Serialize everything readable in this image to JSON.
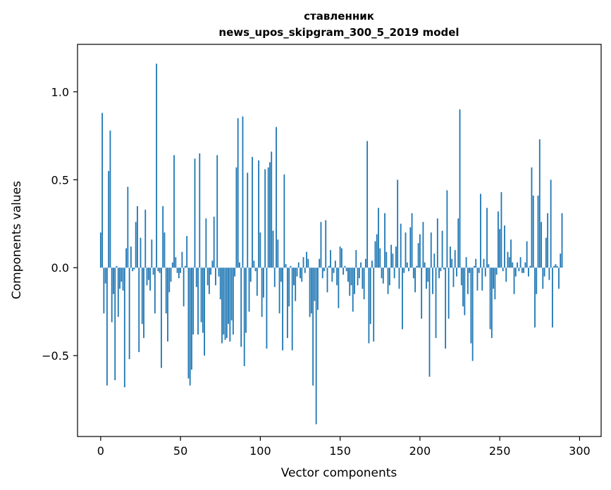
{
  "chart_data": {
    "type": "bar",
    "title": "ставленник",
    "subtitle": "news_upos_skipgram_300_5_2019 model",
    "xlabel": "Vector components",
    "ylabel": "Components values",
    "xlim": [
      -14.5,
      313.5
    ],
    "ylim": [
      -0.96,
      1.27
    ],
    "x_ticks": [
      0,
      50,
      100,
      150,
      200,
      250,
      300
    ],
    "x_tick_labels": [
      "0",
      "50",
      "100",
      "150",
      "200",
      "250",
      "300"
    ],
    "y_ticks": [
      -0.5,
      0.0,
      0.5,
      1.0
    ],
    "y_tick_labels": [
      "−0.5",
      "0.0",
      "0.5",
      "1.0"
    ],
    "bar_color": "#1f77b4",
    "grid": false,
    "values": [
      0.2,
      0.88,
      -0.26,
      -0.09,
      -0.67,
      0.55,
      0.78,
      -0.31,
      -0.15,
      -0.64,
      0.01,
      -0.28,
      -0.12,
      -0.08,
      -0.13,
      -0.68,
      0.11,
      0.46,
      -0.52,
      0.12,
      -0.02,
      -0.01,
      0.26,
      0.35,
      -0.48,
      0.17,
      -0.32,
      -0.4,
      0.33,
      -0.1,
      -0.07,
      -0.13,
      0.16,
      -0.04,
      -0.26,
      1.16,
      -0.02,
      -0.03,
      -0.57,
      0.35,
      0.2,
      -0.26,
      -0.42,
      -0.14,
      -0.08,
      0.03,
      0.64,
      0.06,
      -0.03,
      -0.06,
      -0.03,
      0.09,
      -0.22,
      0.01,
      0.18,
      -0.63,
      -0.67,
      -0.58,
      -0.38,
      0.62,
      -0.11,
      -0.38,
      0.65,
      -0.31,
      -0.37,
      -0.5,
      0.28,
      -0.1,
      -0.15,
      -0.04,
      0.04,
      0.29,
      -0.1,
      0.64,
      -0.05,
      -0.18,
      -0.43,
      -0.38,
      -0.41,
      -0.4,
      -0.32,
      -0.42,
      -0.3,
      -0.38,
      -0.05,
      0.57,
      0.85,
      0.03,
      -0.45,
      0.86,
      -0.56,
      -0.37,
      0.54,
      -0.25,
      -0.08,
      0.63,
      0.04,
      -0.02,
      -0.16,
      0.61,
      0.2,
      -0.28,
      -0.17,
      0.56,
      -0.46,
      0.57,
      0.6,
      0.66,
      0.21,
      -0.11,
      0.8,
      0.16,
      -0.26,
      -0.08,
      -0.47,
      0.53,
      0.02,
      -0.4,
      -0.22,
      0.01,
      -0.47,
      -0.1,
      -0.19,
      -0.05,
      0.03,
      -0.06,
      -0.08,
      0.06,
      -0.03,
      0.09,
      0.05,
      -0.28,
      -0.26,
      -0.67,
      -0.19,
      -0.89,
      -0.24,
      0.05,
      0.26,
      -0.06,
      -0.02,
      0.27,
      -0.14,
      0.01,
      0.1,
      -0.08,
      -0.03,
      0.04,
      -0.1,
      -0.23,
      0.12,
      0.11,
      -0.04,
      0.01,
      -0.02,
      -0.08,
      -0.16,
      -0.1,
      -0.25,
      -0.15,
      0.1,
      -0.1,
      -0.06,
      0.03,
      -0.12,
      -0.18,
      0.05,
      0.72,
      -0.43,
      -0.32,
      0.04,
      -0.42,
      0.15,
      0.19,
      0.34,
      0.11,
      -0.06,
      -0.09,
      0.31,
      0.09,
      -0.15,
      -0.1,
      0.13,
      0.08,
      -0.06,
      0.12,
      0.5,
      -0.12,
      0.25,
      -0.35,
      -0.03,
      0.2,
      0.03,
      -0.02,
      0.23,
      0.31,
      -0.06,
      -0.14,
      0.01,
      0.14,
      0.19,
      -0.29,
      0.26,
      0.03,
      -0.12,
      -0.08,
      -0.62,
      0.2,
      -0.15,
      0.08,
      -0.4,
      0.28,
      -0.06,
      -0.02,
      0.21,
      -0.01,
      -0.46,
      0.44,
      -0.29,
      0.12,
      0.05,
      -0.11,
      0.1,
      -0.05,
      0.28,
      0.9,
      -0.1,
      -0.22,
      -0.27,
      0.06,
      -0.15,
      -0.03,
      -0.43,
      -0.53,
      0.01,
      0.05,
      -0.13,
      -0.03,
      0.42,
      -0.13,
      0.05,
      -0.05,
      0.34,
      0.02,
      -0.35,
      -0.4,
      -0.12,
      -0.18,
      -0.04,
      0.32,
      0.22,
      0.43,
      -0.02,
      0.24,
      -0.08,
      0.09,
      0.06,
      0.16,
      0.03,
      -0.15,
      -0.05,
      0.03,
      -0.02,
      0.06,
      -0.03,
      -0.03,
      0.03,
      0.15,
      -0.05,
      0.01,
      0.57,
      0.41,
      -0.34,
      -0.15,
      0.41,
      0.73,
      0.26,
      -0.12,
      -0.05,
      0.17,
      0.31,
      -0.07,
      0.5,
      -0.34,
      0.01,
      0.02,
      0.01,
      -0.12,
      0.08,
      0.31
    ]
  }
}
